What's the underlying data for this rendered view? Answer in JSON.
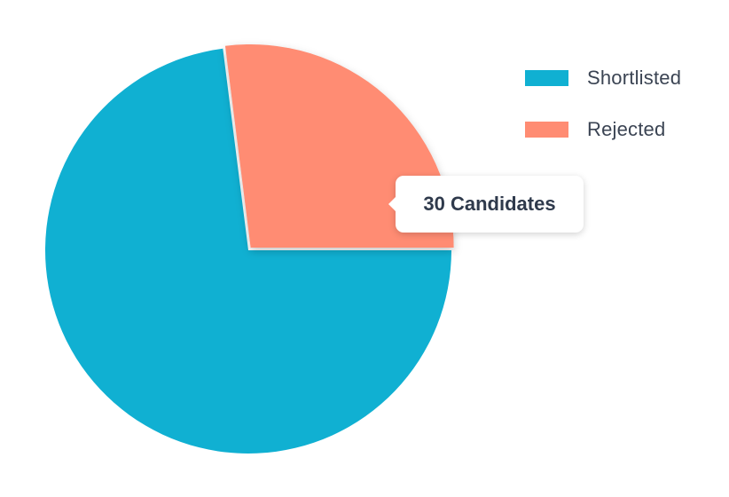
{
  "chart_data": {
    "type": "pie",
    "title": "",
    "slices": [
      {
        "label": "Shortlisted",
        "value": 73,
        "color": "#10b0d2"
      },
      {
        "label": "Rejected",
        "value": 27,
        "color": "#ff8c73"
      }
    ],
    "legend_position": "top-right",
    "tooltip": {
      "slice": "Rejected",
      "text": "30 Candidates"
    }
  }
}
